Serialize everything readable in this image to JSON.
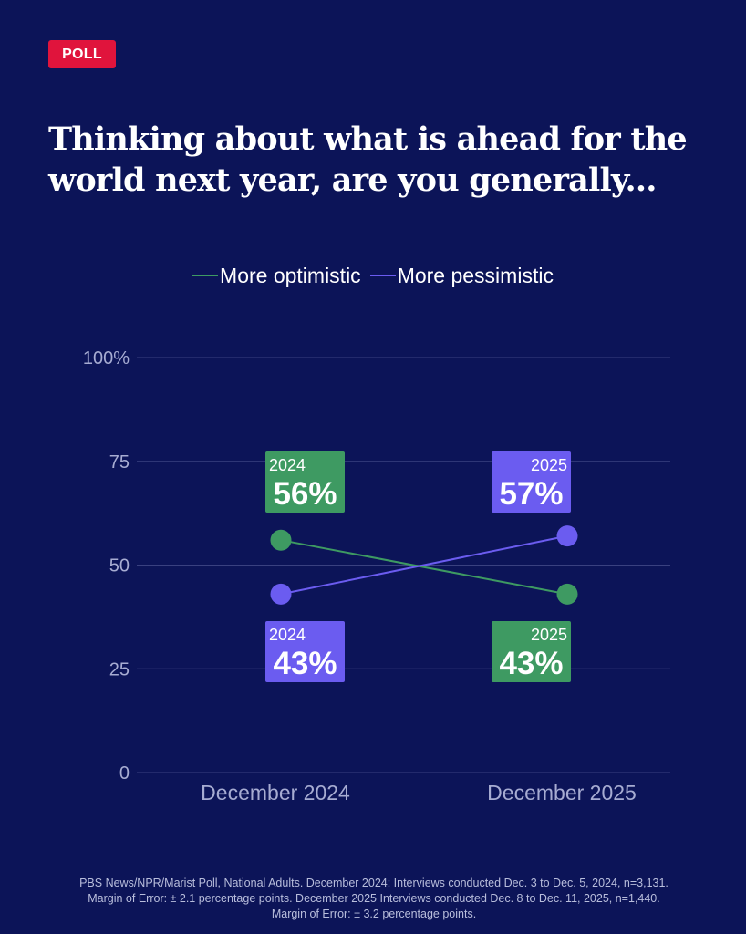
{
  "badge": {
    "label": "POLL"
  },
  "title": "Thinking about what is ahead for the world next year, are you generally...",
  "colors": {
    "background": "#0c1458",
    "optimistic": "#3e9a62",
    "pessimistic": "#6b5cf0",
    "badge": "#e0143c",
    "grid": "#3a4180",
    "axis_text": "#a7acd2"
  },
  "chart_data": {
    "type": "line",
    "title": "Thinking about what is ahead for the world next year, are you generally...",
    "categories": [
      "December 2024",
      "December 2025"
    ],
    "ylim": [
      0,
      100
    ],
    "yticks": [
      {
        "value": 0,
        "label": "0"
      },
      {
        "value": 25,
        "label": "25"
      },
      {
        "value": 50,
        "label": "50"
      },
      {
        "value": 75,
        "label": "75"
      },
      {
        "value": 100,
        "label": "100%"
      }
    ],
    "series": [
      {
        "name": "More optimistic",
        "color": "#3e9a62",
        "values": [
          56,
          43
        ],
        "labels": [
          {
            "year": "2024",
            "value_label": "56%",
            "placement": "above"
          },
          {
            "year": "2025",
            "value_label": "43%",
            "placement": "below"
          }
        ]
      },
      {
        "name": "More pessimistic",
        "color": "#6b5cf0",
        "values": [
          43,
          57
        ],
        "labels": [
          {
            "year": "2024",
            "value_label": "43%",
            "placement": "below"
          },
          {
            "year": "2025",
            "value_label": "57%",
            "placement": "above"
          }
        ]
      }
    ],
    "legend_position": "top-center",
    "grid": true
  },
  "footnote": "PBS News/NPR/Marist Poll, National Adults. December 2024: Interviews conducted Dec. 3 to Dec. 5, 2024, n=3,131. Margin of Error: ± 2.1 percentage points. December 2025 Interviews conducted Dec. 8 to Dec. 11, 2025, n=1,440. Margin of Error: ± 3.2 percentage points."
}
